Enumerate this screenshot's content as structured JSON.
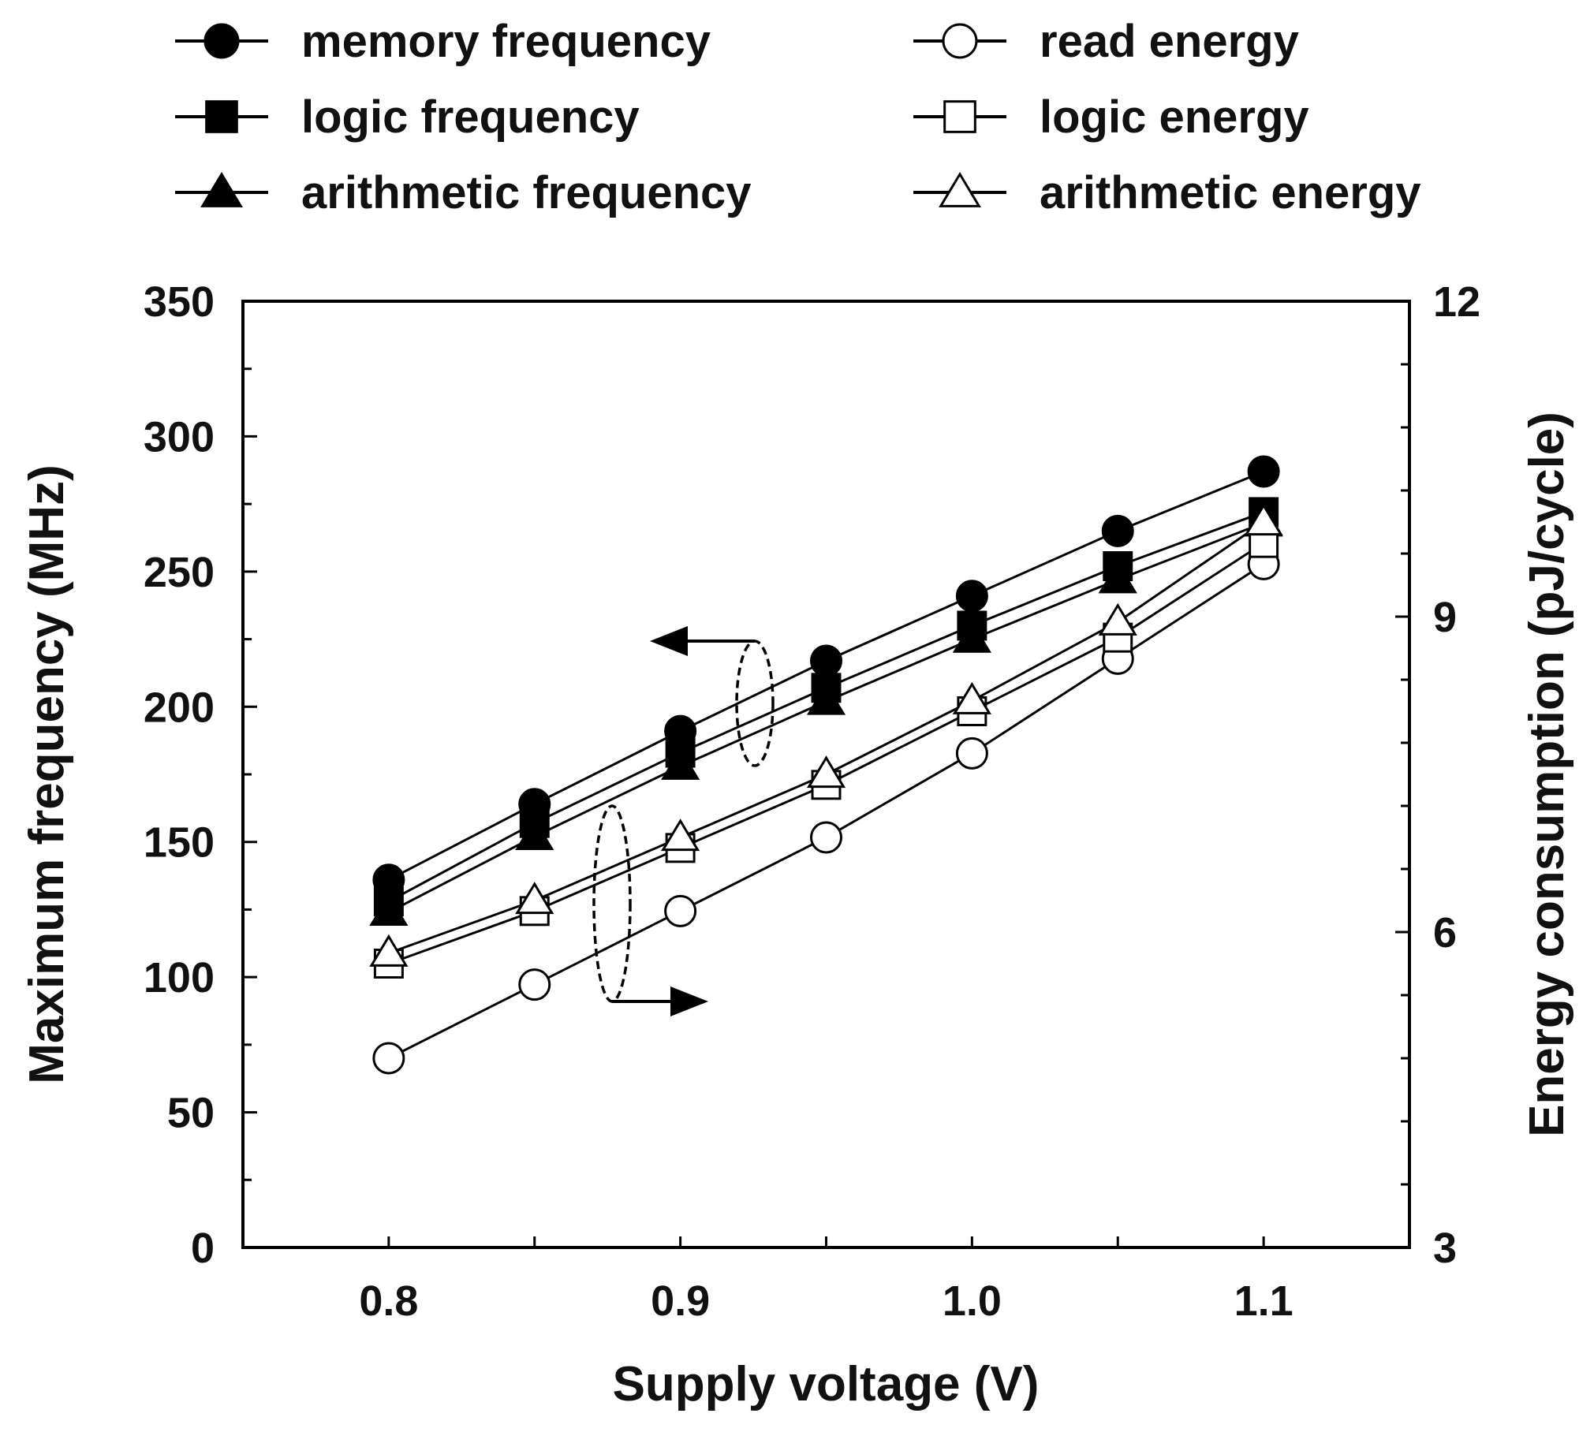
{
  "chart_data": {
    "type": "line",
    "title": "",
    "xlabel": "Supply voltage  (V)",
    "ylabel_left": "Maximum frequency  (MHz)",
    "ylabel_right": "Energy consumption  (pJ/cycle)",
    "x": [
      0.8,
      0.85,
      0.9,
      0.95,
      1.0,
      1.05,
      1.1
    ],
    "xlim": [
      0.75,
      1.15
    ],
    "ylim_left": [
      0,
      350
    ],
    "ylim_right": [
      3,
      12
    ],
    "x_ticks": [
      "0.8",
      "0.9",
      "1.0",
      "1.1"
    ],
    "y_ticks_left": [
      "0",
      "50",
      "100",
      "150",
      "200",
      "250",
      "300",
      "350"
    ],
    "y_ticks_right": [
      "3",
      "6",
      "9",
      "12"
    ],
    "grid": false,
    "legend_position": "top",
    "series": [
      {
        "name": "memory frequency",
        "axis": "left",
        "marker": "filled-circle",
        "values": [
          136,
          164,
          191,
          217,
          241,
          265,
          287
        ]
      },
      {
        "name": "logic frequency",
        "axis": "left",
        "marker": "filled-square",
        "values": [
          128,
          157,
          183,
          207,
          230,
          252,
          272
        ]
      },
      {
        "name": "arithmetic frequency",
        "axis": "left",
        "marker": "filled-triangle",
        "values": [
          124,
          152,
          178,
          202,
          225,
          247,
          268
        ]
      },
      {
        "name": "read energy",
        "axis": "right",
        "marker": "open-circle",
        "values": [
          4.8,
          5.5,
          6.2,
          6.9,
          7.7,
          8.6,
          9.5
        ]
      },
      {
        "name": "logic energy",
        "axis": "right",
        "marker": "open-square",
        "values": [
          5.7,
          6.2,
          6.8,
          7.4,
          8.1,
          8.8,
          9.7
        ]
      },
      {
        "name": "arithmetic energy",
        "axis": "right",
        "marker": "open-triangle",
        "values": [
          5.8,
          6.3,
          6.9,
          7.5,
          8.2,
          8.95,
          9.9
        ]
      }
    ]
  }
}
